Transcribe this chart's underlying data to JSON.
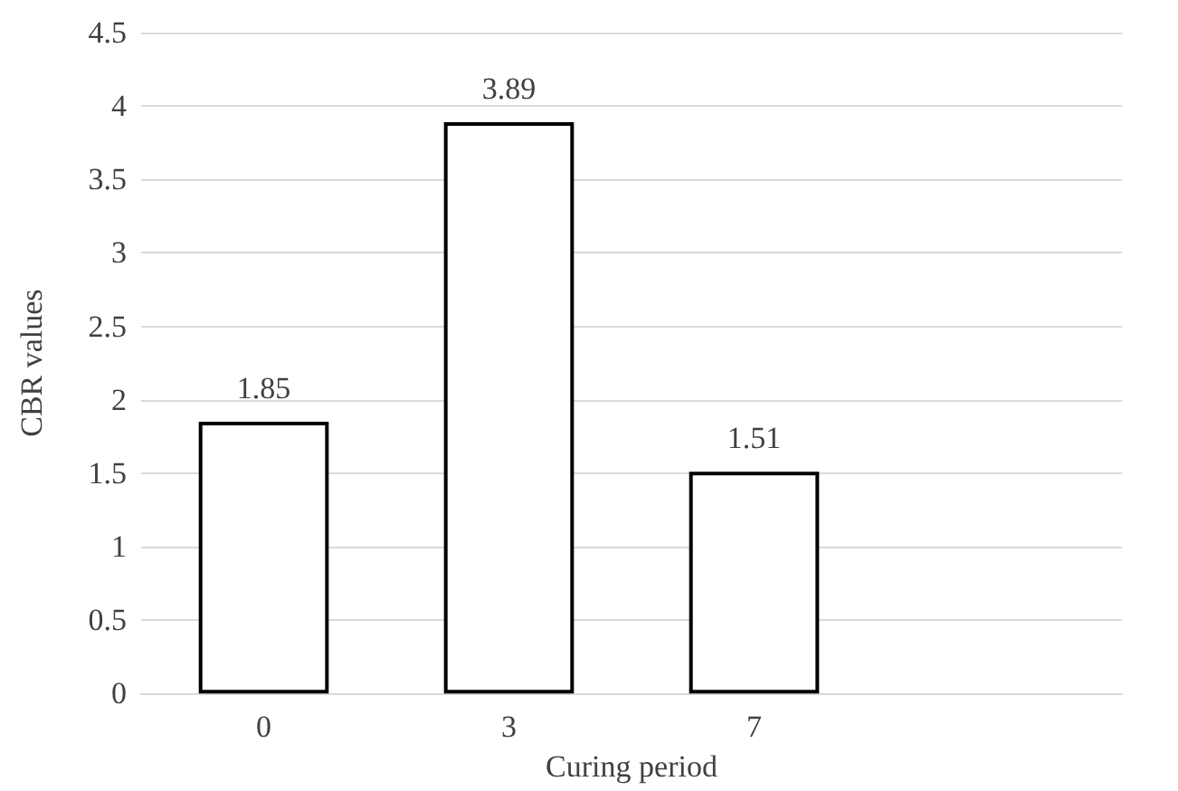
{
  "chart_data": {
    "type": "bar",
    "xlabel": "Curing period",
    "ylabel": "CBR values",
    "categories": [
      "0",
      "3",
      "7",
      null
    ],
    "values": [
      1.85,
      3.89,
      1.51,
      null
    ],
    "color": "#ffffff",
    "ylim": [
      0,
      4.5
    ],
    "yticks": [
      0,
      0.5,
      1,
      1.5,
      2,
      2.5,
      3,
      3.5,
      4,
      4.5
    ],
    "grid": "y",
    "data_labels": true
  }
}
